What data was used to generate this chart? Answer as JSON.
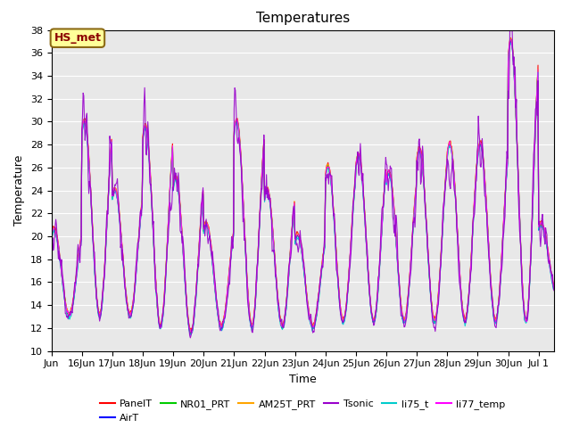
{
  "title": "Temperatures",
  "ylabel": "Temperature",
  "xlabel": "Time",
  "annotation": "HS_met",
  "annotation_color": "#8B0000",
  "annotation_bg": "#FFFF99",
  "annotation_border": "#8B6914",
  "ylim": [
    10,
    38
  ],
  "yticks": [
    10,
    12,
    14,
    16,
    18,
    20,
    22,
    24,
    26,
    28,
    30,
    32,
    34,
    36,
    38
  ],
  "background_color": "#E8E8E8",
  "series": [
    {
      "name": "PanelT",
      "color": "#FF0000",
      "lw": 0.8
    },
    {
      "name": "AirT",
      "color": "#0000FF",
      "lw": 0.8
    },
    {
      "name": "NR01_PRT",
      "color": "#00CC00",
      "lw": 0.8
    },
    {
      "name": "AM25T_PRT",
      "color": "#FFA500",
      "lw": 0.8
    },
    {
      "name": "Tsonic",
      "color": "#9900CC",
      "lw": 0.8
    },
    {
      "name": "li75_t",
      "color": "#00CCCC",
      "lw": 0.8
    },
    {
      "name": "li77_temp",
      "color": "#FF00FF",
      "lw": 0.8
    }
  ],
  "tick_fontsize": 8,
  "title_fontsize": 11,
  "label_fontsize": 9
}
